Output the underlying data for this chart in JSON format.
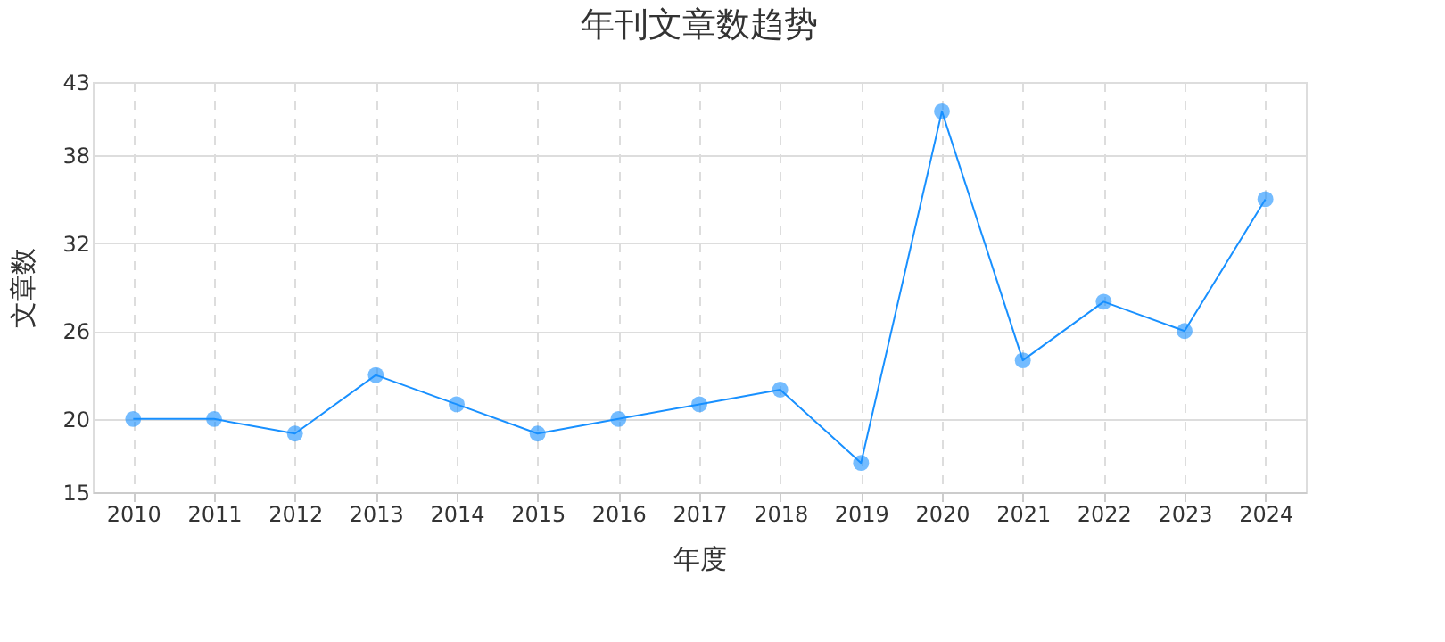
{
  "chart_data": {
    "type": "line",
    "title": "年刊文章数趋势",
    "xlabel": "年度",
    "ylabel": "文章数",
    "categories": [
      "2010",
      "2011",
      "2012",
      "2013",
      "2014",
      "2015",
      "2016",
      "2017",
      "2018",
      "2019",
      "2020",
      "2021",
      "2022",
      "2023",
      "2024"
    ],
    "series": [
      {
        "color": "#1890ff",
        "values": [
          20,
          20,
          19,
          23,
          21,
          19,
          20,
          21,
          22,
          17,
          41,
          24,
          28,
          26,
          35
        ]
      }
    ],
    "ylim": [
      15,
      43
    ],
    "yticks": [
      15,
      20,
      26,
      32,
      38,
      43
    ],
    "grid": true,
    "marker": "circle",
    "line_style": "solid"
  }
}
